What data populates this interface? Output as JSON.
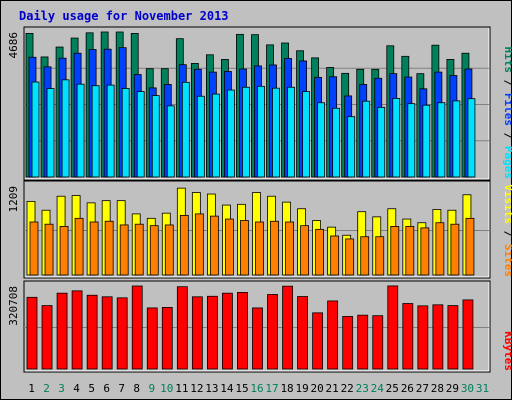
{
  "chart_data": {
    "type": "bar",
    "title": "Daily usage for November 2013",
    "colors": {
      "background": "#c0c0c0",
      "title": "#0000cc",
      "hits": "#00805c",
      "files": "#0040ff",
      "pages": "#00e0ff",
      "visits": "#ffff00",
      "sites": "#ff8000",
      "kbytes": "#ff0000",
      "weekday_label": "#000000",
      "weekend_label": "#00805c"
    },
    "categories": [
      "1",
      "2",
      "3",
      "4",
      "5",
      "6",
      "7",
      "8",
      "9",
      "10",
      "11",
      "12",
      "13",
      "14",
      "15",
      "16",
      "17",
      "18",
      "19",
      "20",
      "21",
      "22",
      "23",
      "24",
      "25",
      "26",
      "27",
      "28",
      "29",
      "30",
      "31"
    ],
    "weekend_days": [
      "2",
      "3",
      "9",
      "10",
      "16",
      "17",
      "23",
      "24",
      "30",
      "31"
    ],
    "panels": [
      {
        "name": "hits-files-pages",
        "ymax": 4686,
        "ymax_label": "4686",
        "legend": [
          "Pages",
          "Files",
          "Hits"
        ],
        "series": [
          {
            "name": "Hits",
            "values": [
              4640,
              3880,
              4200,
              4490,
              4660,
              4686,
              4686,
              4640,
              3500,
              3500,
              4470,
              3670,
              3950,
              3800,
              4610,
              4600,
              4270,
              4330,
              4080,
              3850,
              3540,
              3350,
              3480,
              3480,
              4240,
              3900,
              3340,
              4260,
              3800,
              4000,
              0
            ]
          },
          {
            "name": "Files",
            "values": [
              3870,
              3560,
              3840,
              4000,
              4120,
              4130,
              4180,
              3310,
              2880,
              2990,
              3630,
              3480,
              3390,
              3410,
              3490,
              3590,
              3620,
              3830,
              3750,
              3220,
              3240,
              2620,
              2990,
              3190,
              3340,
              3230,
              2850,
              3390,
              3280,
              3490,
              0
            ]
          },
          {
            "name": "Pages",
            "values": [
              3070,
              2860,
              3140,
              3000,
              2950,
              2970,
              2860,
              2760,
              2630,
              2300,
              3060,
              2610,
              2680,
              2810,
              2900,
              2930,
              2870,
              2900,
              2760,
              2400,
              2220,
              1950,
              2450,
              2250,
              2540,
              2370,
              2320,
              2400,
              2460,
              2530,
              0
            ]
          }
        ]
      },
      {
        "name": "visits-sites",
        "ymax": 1209,
        "ymax_label": "1209",
        "legend": [
          "Sites",
          "Visits"
        ],
        "series": [
          {
            "name": "Visits",
            "values": [
              1000,
              880,
              1070,
              1080,
              980,
              1010,
              1010,
              830,
              770,
              840,
              1180,
              1120,
              1100,
              950,
              960,
              1120,
              1070,
              990,
              900,
              740,
              650,
              540,
              860,
              790,
              900,
              760,
              710,
              890,
              880,
              1090,
              0
            ]
          },
          {
            "name": "Sites",
            "values": [
              720,
              690,
              660,
              770,
              720,
              730,
              680,
              690,
              670,
              680,
              810,
              830,
              800,
              760,
              740,
              720,
              730,
              720,
              670,
              620,
              530,
              490,
              520,
              520,
              660,
              660,
              640,
              710,
              690,
              770,
              0
            ]
          }
        ]
      },
      {
        "name": "kbytes",
        "ymax": 320708,
        "ymax_label": "320708",
        "legend": [
          "KBytes"
        ],
        "series": [
          {
            "name": "KBytes",
            "values": [
              277000,
              245000,
              293000,
              302000,
              285000,
              279000,
              275000,
              320708,
              236000,
              238000,
              318000,
              279000,
              281000,
              293000,
              296000,
              236000,
              288000,
              320000,
              280000,
              217000,
              263000,
              203000,
              208000,
              206000,
              321000,
              253000,
              244000,
              248000,
              245000,
              267000,
              0
            ]
          }
        ]
      }
    ]
  }
}
